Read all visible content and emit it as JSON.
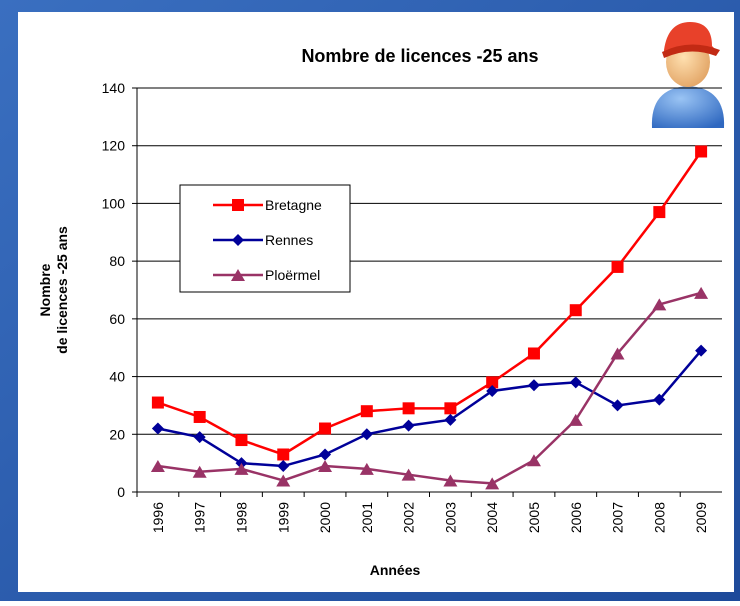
{
  "chart_data": {
    "type": "line",
    "title": "Nombre de licences -25 ans",
    "y_label": [
      "Nombre",
      "de licences -25 ans"
    ],
    "x_label": "Années",
    "categories": [
      "1996",
      "1997",
      "1998",
      "1999",
      "2000",
      "2001",
      "2002",
      "2003",
      "2004",
      "2005",
      "2006",
      "2007",
      "2008",
      "2009"
    ],
    "series": [
      {
        "name": "Bretagne",
        "color": "#ff0000",
        "marker": "square",
        "values": [
          31,
          26,
          18,
          13,
          22,
          28,
          29,
          29,
          38,
          48,
          63,
          78,
          97,
          118
        ]
      },
      {
        "name": "Rennes",
        "color": "#000099",
        "marker": "diamond",
        "values": [
          22,
          19,
          10,
          9,
          13,
          20,
          23,
          25,
          35,
          37,
          38,
          30,
          32,
          49
        ]
      },
      {
        "name": "Ploërmel",
        "color": "#993366",
        "marker": "triangle",
        "values": [
          9,
          7,
          8,
          4,
          9,
          8,
          6,
          4,
          3,
          11,
          25,
          48,
          65,
          69
        ]
      }
    ],
    "ylim": [
      0,
      140
    ],
    "yticks": [
      0,
      20,
      40,
      60,
      80,
      100,
      120,
      140
    ],
    "grid": true
  }
}
